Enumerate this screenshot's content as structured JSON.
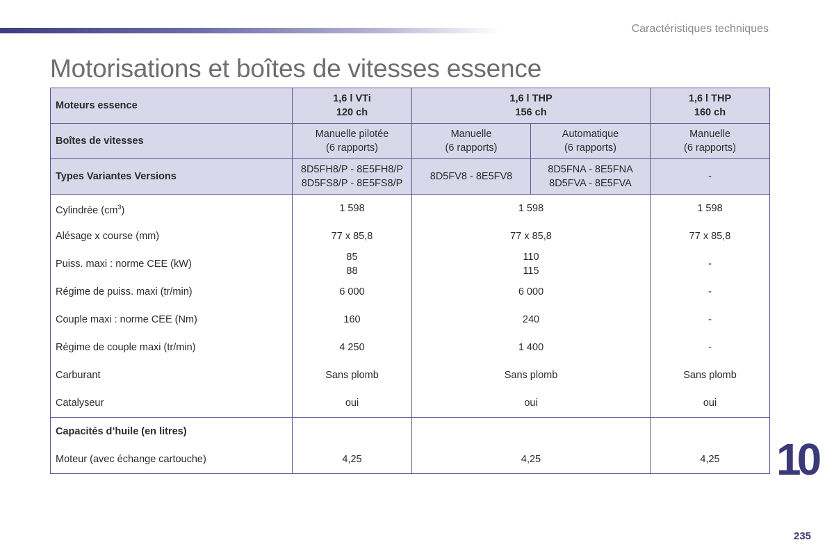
{
  "header": {
    "section": "Caractéristiques techniques",
    "title": "Motorisations et boîtes de vitesses essence"
  },
  "table": {
    "engines_label": "Moteurs essence",
    "engines": [
      {
        "line1": "1,6 l VTi",
        "line2": "120 ch"
      },
      {
        "line1": "1,6 l THP",
        "line2": "156 ch"
      },
      {
        "line1": "1,6 l THP",
        "line2": "160 ch"
      }
    ],
    "gearbox_label": "Boîtes de vitesses",
    "gearboxes": [
      {
        "line1": "Manuelle pilotée",
        "line2": "(6 rapports)"
      },
      {
        "line1": "Manuelle",
        "line2": "(6 rapports)"
      },
      {
        "line1": "Automatique",
        "line2": "(6 rapports)"
      },
      {
        "line1": "Manuelle",
        "line2": "(6 rapports)"
      }
    ],
    "variants_label": "Types Variantes Versions",
    "variants": [
      {
        "line1": "8D5FH8/P - 8E5FH8/P",
        "line2": "8D5FS8/P - 8E5FS8/P"
      },
      {
        "line1": "8D5FV8 - 8E5FV8",
        "line2": ""
      },
      {
        "line1": "8D5FNA - 8E5FNA",
        "line2": "8D5FVA - 8E5FVA"
      },
      {
        "line1": "-",
        "line2": ""
      }
    ],
    "rows": [
      {
        "label": "Cylindrée (cm³)",
        "v1": "1 598",
        "v2": "1 598",
        "v3": "1 598"
      },
      {
        "label": "Alésage x course (mm)",
        "v1": "77 x 85,8",
        "v2": "77 x 85,8",
        "v3": "77 x 85,8"
      },
      {
        "label": "Puiss. maxi : norme CEE (kW)",
        "v1": "85",
        "v1b": "88",
        "v2": "110",
        "v2b": "115",
        "v3": "-"
      },
      {
        "label": "Régime de puiss. maxi (tr/min)",
        "v1": "6 000",
        "v2": "6 000",
        "v3": "-"
      },
      {
        "label": "Couple maxi : norme CEE (Nm)",
        "v1": "160",
        "v2": "240",
        "v3": "-"
      },
      {
        "label": "Régime de couple maxi (tr/min)",
        "v1": "4 250",
        "v2": "1 400",
        "v3": "-"
      },
      {
        "label": "Carburant",
        "v1": "Sans plomb",
        "v2": "Sans plomb",
        "v3": "Sans plomb"
      },
      {
        "label": "Catalyseur",
        "v1": "oui",
        "v2": "oui",
        "v3": "oui"
      }
    ],
    "oil_label": "Capacités d’huile (en litres)",
    "oil_row": {
      "label": "Moteur (avec échange cartouche)",
      "v1": "4,25",
      "v2": "4,25",
      "v3": "4,25"
    }
  },
  "footer": {
    "chapter": "10",
    "page": "235"
  }
}
